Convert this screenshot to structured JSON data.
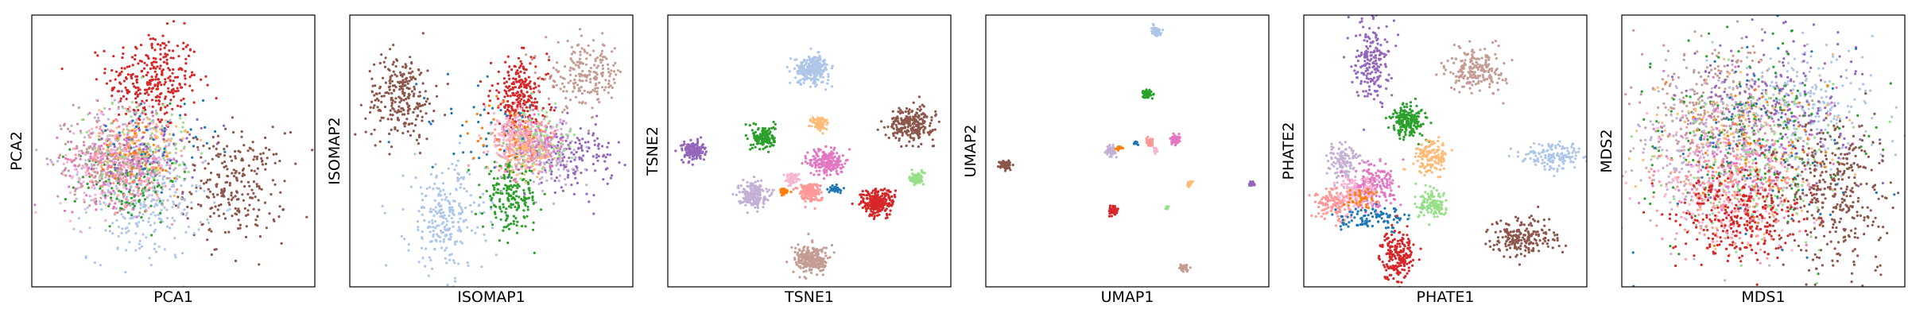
{
  "colors": {
    "red": "#d62728",
    "brown": "#8c564b",
    "light_blue": "#aec7e8",
    "green": "#2ca02c",
    "light_green": "#98df8a",
    "purple": "#9467bd",
    "lavender": "#c5b0d5",
    "pink": "#e377c2",
    "light_pink": "#f7b6d2",
    "salmon": "#ff9896",
    "rosy_brown": "#c49c94",
    "peach": "#ffbb78",
    "orange": "#ff7f0e",
    "blue": "#1f77b4"
  },
  "chart_data": [
    {
      "type": "scatter",
      "xlabel": "PCA1",
      "ylabel": "PCA2",
      "xlim": [
        0,
        1
      ],
      "ylim": [
        0,
        1
      ],
      "grid": false,
      "ticks": false,
      "clusters": [
        {
          "color": "red",
          "cx": 0.43,
          "cy": 0.76,
          "sx": 0.08,
          "sy": 0.09,
          "n": 300
        },
        {
          "color": "brown",
          "cx": 0.72,
          "cy": 0.37,
          "sx": 0.09,
          "sy": 0.1,
          "n": 250
        },
        {
          "color": "light_blue",
          "cx": 0.4,
          "cy": 0.3,
          "sx": 0.1,
          "sy": 0.1,
          "n": 250
        },
        {
          "color": "green",
          "cx": 0.34,
          "cy": 0.4,
          "sx": 0.09,
          "sy": 0.08,
          "n": 150
        },
        {
          "color": "lavender",
          "cx": 0.36,
          "cy": 0.48,
          "sx": 0.11,
          "sy": 0.1,
          "n": 200
        },
        {
          "color": "pink",
          "cx": 0.3,
          "cy": 0.47,
          "sx": 0.09,
          "sy": 0.08,
          "n": 200
        },
        {
          "color": "salmon",
          "cx": 0.33,
          "cy": 0.46,
          "sx": 0.08,
          "sy": 0.08,
          "n": 150
        },
        {
          "color": "light_pink",
          "cx": 0.28,
          "cy": 0.44,
          "sx": 0.09,
          "sy": 0.09,
          "n": 130
        },
        {
          "color": "rosy_brown",
          "cx": 0.25,
          "cy": 0.47,
          "sx": 0.09,
          "sy": 0.08,
          "n": 120
        },
        {
          "color": "light_green",
          "cx": 0.38,
          "cy": 0.54,
          "sx": 0.1,
          "sy": 0.08,
          "n": 90
        },
        {
          "color": "peach",
          "cx": 0.4,
          "cy": 0.52,
          "sx": 0.08,
          "sy": 0.07,
          "n": 70
        },
        {
          "color": "purple",
          "cx": 0.42,
          "cy": 0.5,
          "sx": 0.09,
          "sy": 0.08,
          "n": 60
        },
        {
          "color": "blue",
          "cx": 0.45,
          "cy": 0.55,
          "sx": 0.1,
          "sy": 0.07,
          "n": 40
        },
        {
          "color": "orange",
          "cx": 0.38,
          "cy": 0.5,
          "sx": 0.07,
          "sy": 0.06,
          "n": 40
        }
      ]
    },
    {
      "type": "scatter",
      "xlabel": "ISOMAP1",
      "ylabel": "ISOMAP2",
      "xlim": [
        0,
        1
      ],
      "ylim": [
        0,
        1
      ],
      "grid": false,
      "ticks": false,
      "clusters": [
        {
          "color": "brown",
          "cx": 0.18,
          "cy": 0.7,
          "sx": 0.06,
          "sy": 0.08,
          "n": 250
        },
        {
          "color": "light_blue",
          "cx": 0.34,
          "cy": 0.25,
          "sx": 0.07,
          "sy": 0.1,
          "n": 250
        },
        {
          "color": "red",
          "cx": 0.6,
          "cy": 0.7,
          "sx": 0.05,
          "sy": 0.07,
          "n": 250
        },
        {
          "color": "green",
          "cx": 0.57,
          "cy": 0.33,
          "sx": 0.05,
          "sy": 0.06,
          "n": 200
        },
        {
          "color": "rosy_brown",
          "cx": 0.83,
          "cy": 0.78,
          "sx": 0.07,
          "sy": 0.06,
          "n": 200
        },
        {
          "color": "purple",
          "cx": 0.79,
          "cy": 0.48,
          "sx": 0.07,
          "sy": 0.06,
          "n": 150
        },
        {
          "color": "lavender",
          "cx": 0.68,
          "cy": 0.5,
          "sx": 0.06,
          "sy": 0.06,
          "n": 150
        },
        {
          "color": "pink",
          "cx": 0.65,
          "cy": 0.53,
          "sx": 0.05,
          "sy": 0.05,
          "n": 150
        },
        {
          "color": "salmon",
          "cx": 0.6,
          "cy": 0.52,
          "sx": 0.05,
          "sy": 0.05,
          "n": 120
        },
        {
          "color": "peach",
          "cx": 0.62,
          "cy": 0.5,
          "sx": 0.05,
          "sy": 0.05,
          "n": 100
        },
        {
          "color": "light_pink",
          "cx": 0.57,
          "cy": 0.56,
          "sx": 0.05,
          "sy": 0.05,
          "n": 100
        },
        {
          "color": "light_green",
          "cx": 0.68,
          "cy": 0.55,
          "sx": 0.06,
          "sy": 0.06,
          "n": 60
        },
        {
          "color": "blue",
          "cx": 0.45,
          "cy": 0.6,
          "sx": 0.12,
          "sy": 0.1,
          "n": 40
        },
        {
          "color": "orange",
          "cx": 0.55,
          "cy": 0.55,
          "sx": 0.08,
          "sy": 0.08,
          "n": 30
        }
      ]
    },
    {
      "type": "scatter",
      "xlabel": "TSNE1",
      "ylabel": "TSNE2",
      "xlim": [
        0,
        1
      ],
      "ylim": [
        0,
        1
      ],
      "grid": false,
      "ticks": false,
      "clusters": [
        {
          "color": "light_blue",
          "cx": 0.51,
          "cy": 0.8,
          "sx": 0.03,
          "sy": 0.025,
          "n": 250
        },
        {
          "color": "brown",
          "cx": 0.86,
          "cy": 0.6,
          "sx": 0.04,
          "sy": 0.03,
          "n": 250
        },
        {
          "color": "purple",
          "cx": 0.09,
          "cy": 0.5,
          "sx": 0.02,
          "sy": 0.018,
          "n": 150
        },
        {
          "color": "green",
          "cx": 0.34,
          "cy": 0.55,
          "sx": 0.02,
          "sy": 0.022,
          "n": 150
        },
        {
          "color": "peach",
          "cx": 0.54,
          "cy": 0.6,
          "sx": 0.015,
          "sy": 0.015,
          "n": 80
        },
        {
          "color": "pink",
          "cx": 0.56,
          "cy": 0.46,
          "sx": 0.03,
          "sy": 0.025,
          "n": 200
        },
        {
          "color": "lavender",
          "cx": 0.3,
          "cy": 0.34,
          "sx": 0.025,
          "sy": 0.022,
          "n": 200
        },
        {
          "color": "salmon",
          "cx": 0.5,
          "cy": 0.35,
          "sx": 0.02,
          "sy": 0.018,
          "n": 150
        },
        {
          "color": "light_pink",
          "cx": 0.44,
          "cy": 0.4,
          "sx": 0.012,
          "sy": 0.01,
          "n": 60
        },
        {
          "color": "red",
          "cx": 0.74,
          "cy": 0.31,
          "sx": 0.03,
          "sy": 0.025,
          "n": 250
        },
        {
          "color": "light_green",
          "cx": 0.88,
          "cy": 0.4,
          "sx": 0.012,
          "sy": 0.012,
          "n": 80
        },
        {
          "color": "rosy_brown",
          "cx": 0.51,
          "cy": 0.1,
          "sx": 0.03,
          "sy": 0.025,
          "n": 250
        },
        {
          "color": "orange",
          "cx": 0.41,
          "cy": 0.35,
          "sx": 0.008,
          "sy": 0.006,
          "n": 40
        },
        {
          "color": "blue",
          "cx": 0.59,
          "cy": 0.36,
          "sx": 0.01,
          "sy": 0.006,
          "n": 40
        }
      ]
    },
    {
      "type": "scatter",
      "xlabel": "UMAP1",
      "ylabel": "UMAP2",
      "xlim": [
        0,
        1
      ],
      "ylim": [
        0,
        1
      ],
      "grid": false,
      "ticks": false,
      "clusters": [
        {
          "color": "light_blue",
          "cx": 0.6,
          "cy": 0.94,
          "sx": 0.008,
          "sy": 0.008,
          "n": 80
        },
        {
          "color": "green",
          "cx": 0.57,
          "cy": 0.71,
          "sx": 0.007,
          "sy": 0.008,
          "n": 60
        },
        {
          "color": "brown",
          "cx": 0.07,
          "cy": 0.45,
          "sx": 0.01,
          "sy": 0.008,
          "n": 80
        },
        {
          "color": "lavender",
          "cx": 0.44,
          "cy": 0.5,
          "sx": 0.008,
          "sy": 0.008,
          "n": 60
        },
        {
          "color": "salmon",
          "cx": 0.58,
          "cy": 0.53,
          "sx": 0.006,
          "sy": 0.007,
          "n": 50
        },
        {
          "color": "light_pink",
          "cx": 0.6,
          "cy": 0.5,
          "sx": 0.004,
          "sy": 0.005,
          "n": 25
        },
        {
          "color": "pink",
          "cx": 0.67,
          "cy": 0.54,
          "sx": 0.008,
          "sy": 0.008,
          "n": 60
        },
        {
          "color": "orange",
          "cx": 0.47,
          "cy": 0.51,
          "sx": 0.006,
          "sy": 0.004,
          "n": 20
        },
        {
          "color": "blue",
          "cx": 0.53,
          "cy": 0.53,
          "sx": 0.004,
          "sy": 0.004,
          "n": 15
        },
        {
          "color": "purple",
          "cx": 0.94,
          "cy": 0.38,
          "sx": 0.005,
          "sy": 0.005,
          "n": 30
        },
        {
          "color": "peach",
          "cx": 0.72,
          "cy": 0.38,
          "sx": 0.004,
          "sy": 0.004,
          "n": 20
        },
        {
          "color": "red",
          "cx": 0.45,
          "cy": 0.28,
          "sx": 0.007,
          "sy": 0.008,
          "n": 60
        },
        {
          "color": "light_green",
          "cx": 0.64,
          "cy": 0.29,
          "sx": 0.003,
          "sy": 0.003,
          "n": 15
        },
        {
          "color": "rosy_brown",
          "cx": 0.7,
          "cy": 0.07,
          "sx": 0.007,
          "sy": 0.006,
          "n": 50
        }
      ]
    },
    {
      "type": "scatter",
      "xlabel": "PHATE1",
      "ylabel": "PHATE2",
      "xlim": [
        0,
        1
      ],
      "ylim": [
        0,
        1
      ],
      "grid": false,
      "ticks": false,
      "clusters": [
        {
          "color": "purple",
          "cx": 0.24,
          "cy": 0.84,
          "sx": 0.03,
          "sy": 0.08,
          "n": 200
        },
        {
          "color": "rosy_brown",
          "cx": 0.61,
          "cy": 0.8,
          "sx": 0.05,
          "sy": 0.04,
          "n": 200
        },
        {
          "color": "green",
          "cx": 0.37,
          "cy": 0.61,
          "sx": 0.03,
          "sy": 0.03,
          "n": 200
        },
        {
          "color": "peach",
          "cx": 0.45,
          "cy": 0.48,
          "sx": 0.03,
          "sy": 0.03,
          "n": 150
        },
        {
          "color": "light_blue",
          "cx": 0.89,
          "cy": 0.48,
          "sx": 0.06,
          "sy": 0.025,
          "n": 150
        },
        {
          "color": "lavender",
          "cx": 0.14,
          "cy": 0.46,
          "sx": 0.03,
          "sy": 0.04,
          "n": 120
        },
        {
          "color": "pink",
          "cx": 0.24,
          "cy": 0.37,
          "sx": 0.04,
          "sy": 0.04,
          "n": 200
        },
        {
          "color": "light_pink",
          "cx": 0.18,
          "cy": 0.34,
          "sx": 0.04,
          "sy": 0.03,
          "n": 150
        },
        {
          "color": "salmon",
          "cx": 0.1,
          "cy": 0.3,
          "sx": 0.04,
          "sy": 0.03,
          "n": 120
        },
        {
          "color": "light_green",
          "cx": 0.46,
          "cy": 0.3,
          "sx": 0.03,
          "sy": 0.025,
          "n": 120
        },
        {
          "color": "blue",
          "cx": 0.25,
          "cy": 0.25,
          "sx": 0.06,
          "sy": 0.02,
          "n": 100
        },
        {
          "color": "orange",
          "cx": 0.2,
          "cy": 0.33,
          "sx": 0.03,
          "sy": 0.02,
          "n": 40
        },
        {
          "color": "red",
          "cx": 0.33,
          "cy": 0.12,
          "sx": 0.03,
          "sy": 0.045,
          "n": 200
        },
        {
          "color": "brown",
          "cx": 0.78,
          "cy": 0.18,
          "sx": 0.06,
          "sy": 0.035,
          "n": 200
        }
      ]
    },
    {
      "type": "scatter",
      "xlabel": "MDS1",
      "ylabel": "MDS2",
      "xlim": [
        0,
        1
      ],
      "ylim": [
        0,
        1
      ],
      "grid": false,
      "ticks": false,
      "clusters": [
        {
          "color": "rosy_brown",
          "cx": 0.33,
          "cy": 0.66,
          "sx": 0.12,
          "sy": 0.12,
          "n": 300
        },
        {
          "color": "light_blue",
          "cx": 0.66,
          "cy": 0.66,
          "sx": 0.12,
          "sy": 0.12,
          "n": 250
        },
        {
          "color": "purple",
          "cx": 0.55,
          "cy": 0.65,
          "sx": 0.15,
          "sy": 0.14,
          "n": 250
        },
        {
          "color": "green",
          "cx": 0.45,
          "cy": 0.55,
          "sx": 0.18,
          "sy": 0.18,
          "n": 200
        },
        {
          "color": "peach",
          "cx": 0.4,
          "cy": 0.5,
          "sx": 0.16,
          "sy": 0.16,
          "n": 150
        },
        {
          "color": "lavender",
          "cx": 0.3,
          "cy": 0.5,
          "sx": 0.14,
          "sy": 0.14,
          "n": 200
        },
        {
          "color": "pink",
          "cx": 0.42,
          "cy": 0.45,
          "sx": 0.14,
          "sy": 0.12,
          "n": 200
        },
        {
          "color": "light_pink",
          "cx": 0.35,
          "cy": 0.4,
          "sx": 0.14,
          "sy": 0.12,
          "n": 150
        },
        {
          "color": "light_green",
          "cx": 0.5,
          "cy": 0.45,
          "sx": 0.16,
          "sy": 0.14,
          "n": 150
        },
        {
          "color": "salmon",
          "cx": 0.38,
          "cy": 0.32,
          "sx": 0.12,
          "sy": 0.1,
          "n": 200
        },
        {
          "color": "blue",
          "cx": 0.5,
          "cy": 0.5,
          "sx": 0.18,
          "sy": 0.18,
          "n": 80
        },
        {
          "color": "orange",
          "cx": 0.45,
          "cy": 0.5,
          "sx": 0.15,
          "sy": 0.15,
          "n": 60
        },
        {
          "color": "red",
          "cx": 0.42,
          "cy": 0.27,
          "sx": 0.12,
          "sy": 0.09,
          "n": 300
        },
        {
          "color": "brown",
          "cx": 0.76,
          "cy": 0.35,
          "sx": 0.09,
          "sy": 0.14,
          "n": 350
        }
      ]
    }
  ]
}
